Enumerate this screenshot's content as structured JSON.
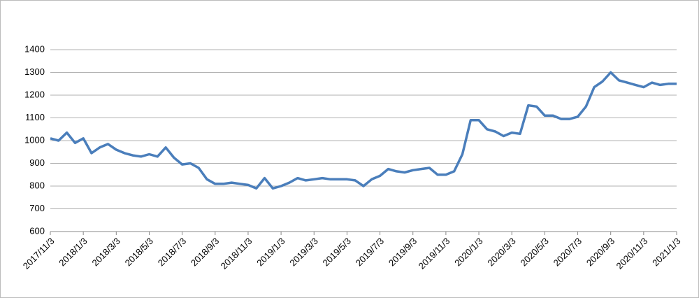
{
  "chart_data": {
    "type": "line",
    "categories": [
      "2017/11/3",
      null,
      null,
      null,
      "2018/1/3",
      null,
      null,
      null,
      "2018/3/3",
      null,
      null,
      null,
      "2018/5/3",
      null,
      null,
      null,
      "2018/7/3",
      null,
      null,
      null,
      "2018/9/3",
      null,
      null,
      null,
      "2018/11/3",
      null,
      null,
      null,
      "2019/1/3",
      null,
      null,
      null,
      "2019/3/3",
      null,
      null,
      null,
      "2019/5/3",
      null,
      null,
      null,
      "2019/7/3",
      null,
      null,
      null,
      "2019/9/3",
      null,
      null,
      null,
      "2019/11/3",
      null,
      null,
      null,
      "2020/1/3",
      null,
      null,
      null,
      "2020/3/3",
      null,
      null,
      null,
      "2020/5/3",
      null,
      null,
      null,
      "2020/7/3",
      null,
      null,
      null,
      "2020/9/3",
      null,
      null,
      null,
      "2020/11/3",
      null,
      null,
      null,
      "2021/1/3"
    ],
    "values": [
      1010,
      1000,
      1035,
      990,
      1010,
      945,
      970,
      985,
      960,
      945,
      935,
      930,
      940,
      930,
      970,
      925,
      895,
      900,
      880,
      830,
      810,
      810,
      815,
      810,
      805,
      790,
      835,
      790,
      800,
      815,
      835,
      825,
      830,
      835,
      830,
      830,
      830,
      825,
      800,
      830,
      845,
      875,
      865,
      860,
      870,
      875,
      880,
      850,
      850,
      865,
      940,
      1090,
      1090,
      1050,
      1040,
      1020,
      1035,
      1030,
      1155,
      1150,
      1110,
      1110,
      1095,
      1095,
      1105,
      1150,
      1235,
      1260,
      1300,
      1265,
      1255,
      1245,
      1235,
      1255,
      1245,
      1250,
      1250
    ],
    "color": "#4a7ebb",
    "ylim": [
      600,
      1400
    ],
    "yticks": [
      600,
      700,
      800,
      900,
      1000,
      1100,
      1200,
      1300,
      1400
    ],
    "grid": true
  }
}
